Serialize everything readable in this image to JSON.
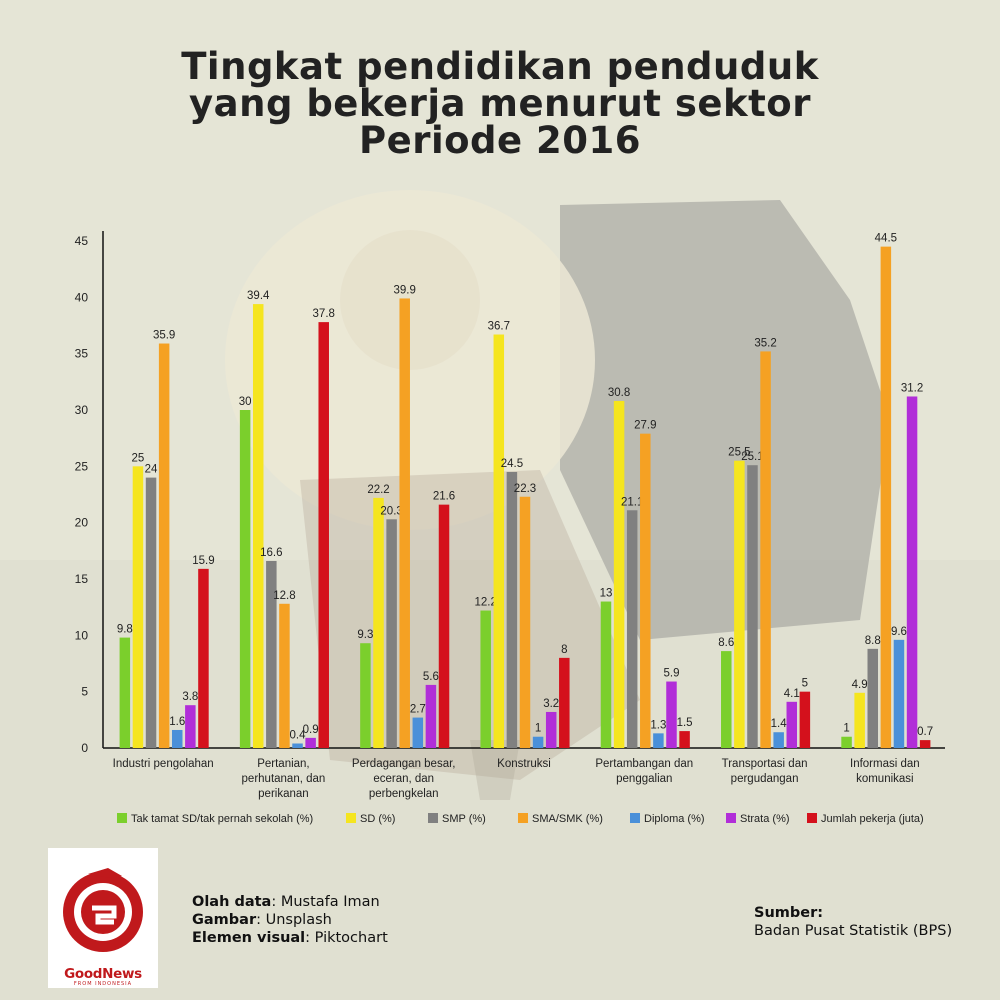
{
  "title": {
    "line1": "Tingkat pendidikan penduduk",
    "line2": "yang bekerja menurut sektor",
    "line3": "Periode 2016"
  },
  "colors": {
    "tak_tamat": "#7bcf2c",
    "sd": "#f5e51f",
    "smp": "#808080",
    "sma": "#f5a123",
    "diploma": "#4a90d9",
    "strata": "#b12ed8",
    "jumlah": "#d4111c"
  },
  "chart_data": {
    "type": "bar",
    "ylim": [
      0,
      45
    ],
    "yticks": [
      0,
      5,
      10,
      15,
      20,
      25,
      30,
      35,
      40,
      45
    ],
    "legend_position": "bottom",
    "categories": [
      [
        "Industri pengolahan"
      ],
      [
        "Pertanian,",
        "perhutanan, dan",
        "perikanan"
      ],
      [
        "Perdagangan besar,",
        "eceran, dan",
        "perbengkelan"
      ],
      [
        "Konstruksi"
      ],
      [
        "Pertambangan dan",
        "penggalian"
      ],
      [
        "Transportasi dan",
        "pergudangan"
      ],
      [
        "Informasi dan",
        "komunikasi"
      ]
    ],
    "series": [
      {
        "name": "Tak tamat SD/tak pernah sekolah (%)",
        "color_key": "tak_tamat",
        "values": [
          9.8,
          30,
          9.3,
          12.2,
          13,
          8.6,
          1
        ]
      },
      {
        "name": "SD (%)",
        "color_key": "sd",
        "values": [
          25,
          39.4,
          22.2,
          36.7,
          30.8,
          25.5,
          4.9
        ]
      },
      {
        "name": "SMP (%)",
        "color_key": "smp",
        "values": [
          24,
          16.6,
          20.3,
          24.5,
          21.1,
          25.1,
          8.8
        ]
      },
      {
        "name": "SMA/SMK (%)",
        "color_key": "sma",
        "values": [
          35.9,
          12.8,
          39.9,
          22.3,
          27.9,
          35.2,
          44.5
        ]
      },
      {
        "name": "Diploma (%)",
        "color_key": "diploma",
        "values": [
          1.6,
          0.4,
          2.7,
          1,
          1.3,
          1.4,
          9.6
        ]
      },
      {
        "name": "Strata (%)",
        "color_key": "strata",
        "values": [
          3.8,
          0.9,
          5.6,
          3.2,
          5.9,
          4.1,
          31.2
        ]
      },
      {
        "name": "Jumlah pekerja (juta)",
        "color_key": "jumlah",
        "values": [
          15.9,
          37.8,
          21.6,
          8,
          1.5,
          5,
          0.7
        ]
      }
    ]
  },
  "credits": {
    "olah_label": "Olah data",
    "olah_value": ": Mustafa Iman",
    "gambar_label": "Gambar",
    "gambar_value": ": Unsplash",
    "elemen_label": "Elemen visual",
    "elemen_value": ": Piktochart"
  },
  "source": {
    "label": "Sumber:",
    "value": "Badan Pusat Statistik (BPS)"
  },
  "logo": {
    "name": "GoodNews",
    "tagline": "FROM INDONESIA"
  }
}
